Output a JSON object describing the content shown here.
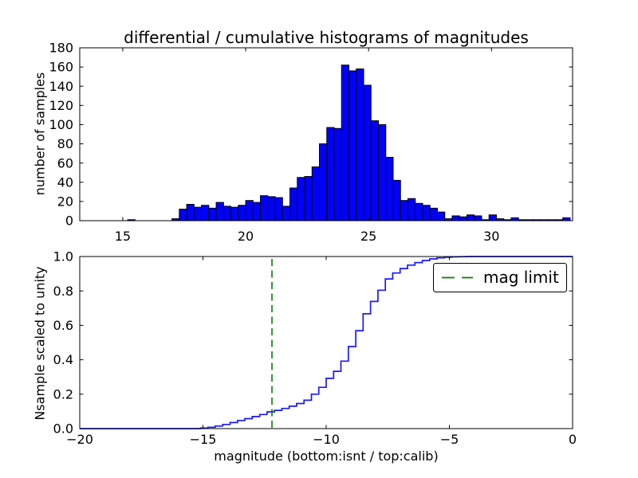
{
  "figure": {
    "title": "differential / cumulative histograms of magnitudes",
    "background": "#ffffff"
  },
  "legend": {
    "label": "mag limit",
    "line_color": "#008000",
    "position": "upper right"
  },
  "chart_data": [
    {
      "type": "bar",
      "subplot": "top",
      "title": "differential / cumulative histograms of magnitudes",
      "xlabel": "",
      "ylabel": "number of samples",
      "xlim": [
        13.25,
        33.3
      ],
      "ylim": [
        0,
        180
      ],
      "xticks": [
        15,
        20,
        25,
        30
      ],
      "xtick_labels": [
        "15",
        "20",
        "25",
        "30"
      ],
      "yticks": [
        0,
        20,
        40,
        60,
        80,
        100,
        120,
        140,
        160,
        180
      ],
      "ytick_labels": [
        "0",
        "20",
        "40",
        "60",
        "80",
        "100",
        "120",
        "140",
        "160",
        "180"
      ],
      "grid": false,
      "bar_color": "#0000ff",
      "bar_edge_color": "#000000",
      "bins": {
        "start": 15.2,
        "width": 0.3,
        "counts": [
          1,
          0,
          0,
          0,
          0,
          0,
          2,
          12,
          17,
          14,
          16,
          13,
          19,
          15,
          14,
          16,
          21,
          19,
          26,
          25,
          24,
          15,
          34,
          45,
          46,
          56,
          80,
          97,
          96,
          162,
          156,
          158,
          141,
          104,
          100,
          66,
          42,
          21,
          23,
          18,
          16,
          13,
          9,
          2,
          5,
          4,
          6,
          5,
          1,
          6,
          2,
          1,
          3,
          1,
          1,
          1,
          1,
          1,
          1,
          3
        ]
      }
    },
    {
      "type": "line",
      "subplot": "bottom",
      "style": "steps-post",
      "title": "",
      "xlabel": "magnitude (bottom:isnt / top:calib)",
      "ylabel": "Nsample scaled to unity",
      "xlim": [
        -20,
        0
      ],
      "ylim": [
        0.0,
        1.0
      ],
      "xticks": [
        -20,
        -15,
        -10,
        -5,
        0
      ],
      "xtick_labels": [
        "−20",
        "−15",
        "−10",
        "−5",
        "0"
      ],
      "yticks": [
        0.0,
        0.2,
        0.4,
        0.6,
        0.8,
        1.0
      ],
      "ytick_labels": [
        "0.0",
        "0.2",
        "0.4",
        "0.6",
        "0.8",
        "1.0"
      ],
      "grid": false,
      "line_color": "#0000ff",
      "cdf_steps": [
        [
          -20,
          0
        ],
        [
          -15.1,
          0.003
        ],
        [
          -14.8,
          0.008
        ],
        [
          -14.5,
          0.015
        ],
        [
          -14.2,
          0.024
        ],
        [
          -13.9,
          0.035
        ],
        [
          -13.6,
          0.047
        ],
        [
          -13.3,
          0.058
        ],
        [
          -13.0,
          0.07
        ],
        [
          -12.7,
          0.082
        ],
        [
          -12.4,
          0.097
        ],
        [
          -12.1,
          0.106
        ],
        [
          -11.8,
          0.117
        ],
        [
          -11.5,
          0.13
        ],
        [
          -11.2,
          0.146
        ],
        [
          -10.9,
          0.165
        ],
        [
          -10.6,
          0.2
        ],
        [
          -10.3,
          0.24
        ],
        [
          -10.0,
          0.292
        ],
        [
          -9.7,
          0.333
        ],
        [
          -9.4,
          0.392
        ],
        [
          -9.1,
          0.477
        ],
        [
          -8.8,
          0.569
        ],
        [
          -8.5,
          0.667
        ],
        [
          -8.2,
          0.739
        ],
        [
          -7.9,
          0.804
        ],
        [
          -7.6,
          0.87
        ],
        [
          -7.3,
          0.904
        ],
        [
          -7.0,
          0.93
        ],
        [
          -6.7,
          0.95
        ],
        [
          -6.4,
          0.965
        ],
        [
          -6.1,
          0.977
        ],
        [
          -5.8,
          0.986
        ],
        [
          -5.5,
          0.992
        ],
        [
          -5.2,
          0.996
        ],
        [
          -4.9,
          0.998
        ],
        [
          -4.6,
          0.999
        ],
        [
          -4.3,
          1.0
        ],
        [
          0,
          1.0
        ]
      ],
      "mag_limit": {
        "x": -12.2,
        "color": "#008000",
        "label": "mag limit",
        "linestyle": "dashed"
      }
    }
  ]
}
